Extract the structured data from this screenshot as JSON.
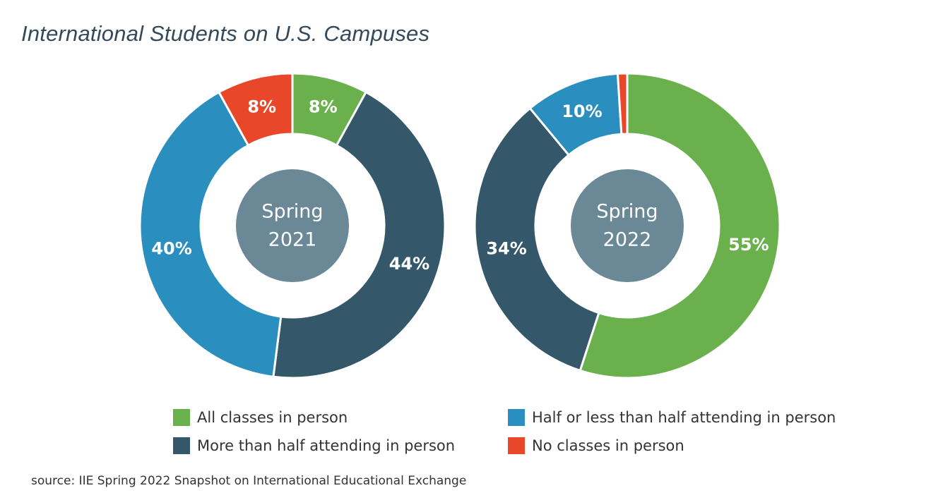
{
  "title": "International Students on U.S. Campuses",
  "source": "source: IIE Spring 2022 Snapshot on International Educational Exchange",
  "colors": {
    "all_in_person": "#6ab04c",
    "more_than_half": "#34586a",
    "half_or_less": "#2a8fbf",
    "none_in_person": "#e8472a",
    "center": "#6a8896"
  },
  "legend": [
    {
      "label": "All classes in person",
      "color": "#6ab04c"
    },
    {
      "label": "Half or less than half attending in person",
      "color": "#2a8fbf"
    },
    {
      "label": "More than half attending in person",
      "color": "#34586a"
    },
    {
      "label": "No classes in person",
      "color": "#e8472a"
    }
  ],
  "chart_data": [
    {
      "type": "pie",
      "center_label": [
        "Spring",
        "2021"
      ],
      "categories": [
        "All classes in person",
        "More than half attending in person",
        "Half or less than half attending in person",
        "No classes in person"
      ],
      "values": [
        8,
        44,
        40,
        8
      ],
      "labels": [
        "8%",
        "44%",
        "40%",
        "8%"
      ]
    },
    {
      "type": "pie",
      "center_label": [
        "Spring",
        "2022"
      ],
      "categories": [
        "All classes in person",
        "More than half attending in person",
        "Half or less than half attending in person",
        "No classes in person"
      ],
      "values": [
        55,
        34,
        10,
        1
      ],
      "labels": [
        "55%",
        "34%",
        "10%",
        ""
      ]
    }
  ]
}
